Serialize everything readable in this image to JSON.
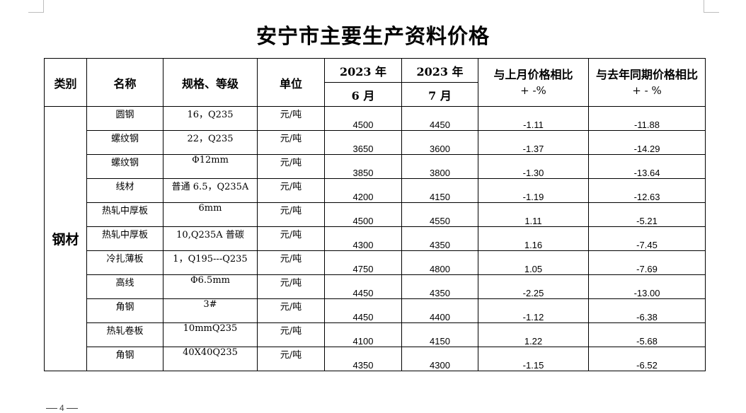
{
  "title": "安宁市主要生产资料价格",
  "headers": {
    "category": "类别",
    "name": "名称",
    "spec": "规格、等级",
    "unit": "单位",
    "year1": "2023 年",
    "year2": "2023 年",
    "month1": "6 月",
    "month2": "7 月",
    "mom_line1": "与上月价格相比",
    "mom_line2": "+ -%",
    "yoy_line1": "与去年同期价格相比",
    "yoy_line2": "+ - %"
  },
  "category": "钢材",
  "rows": [
    {
      "name": "圆钢",
      "spec": "16，Q235",
      "unit": "元/吨",
      "june": "4500",
      "july": "4450",
      "mom": "-1.11",
      "yoy": "-11.88"
    },
    {
      "name": "螺纹钢",
      "spec": "22，Q235",
      "unit": "元/吨",
      "june": "3650",
      "july": "3600",
      "mom": "-1.37",
      "yoy": "-14.29"
    },
    {
      "name": "螺纹钢",
      "spec": "Φ12mm",
      "unit": "元/吨",
      "june": "3850",
      "july": "3800",
      "mom": "-1.30",
      "yoy": "-13.64"
    },
    {
      "name": "线材",
      "spec": "普通 6.5，Q235A",
      "unit": "元/吨",
      "june": "4200",
      "july": "4150",
      "mom": "-1.19",
      "yoy": "-12.63"
    },
    {
      "name": "热轧中厚板",
      "spec": "6mm",
      "unit": "元/吨",
      "june": "4500",
      "july": "4550",
      "mom": "1.11",
      "yoy": "-5.21"
    },
    {
      "name": "热轧中厚板",
      "spec": "10,Q235A 普碳",
      "unit": "元/吨",
      "june": "4300",
      "july": "4350",
      "mom": "1.16",
      "yoy": "-7.45"
    },
    {
      "name": "冷扎薄板",
      "spec": "1，Q195---Q235",
      "unit": "元/吨",
      "june": "4750",
      "july": "4800",
      "mom": "1.05",
      "yoy": "-7.69"
    },
    {
      "name": "高线",
      "spec": "Φ6.5mm",
      "unit": "元/吨",
      "june": "4450",
      "july": "4350",
      "mom": "-2.25",
      "yoy": "-13.00"
    },
    {
      "name": "角钢",
      "spec": "3#",
      "unit": "元/吨",
      "june": "4450",
      "july": "4400",
      "mom": "-1.12",
      "yoy": "-6.38"
    },
    {
      "name": "热轧卷板",
      "spec": "10mmQ235",
      "unit": "元/吨",
      "june": "4100",
      "july": "4150",
      "mom": "1.22",
      "yoy": "-5.68"
    },
    {
      "name": "角钢",
      "spec": "40X40Q235",
      "unit": "元/吨",
      "june": "4350",
      "july": "4300",
      "mom": "-1.15",
      "yoy": "-6.52"
    }
  ],
  "page_number": "4"
}
